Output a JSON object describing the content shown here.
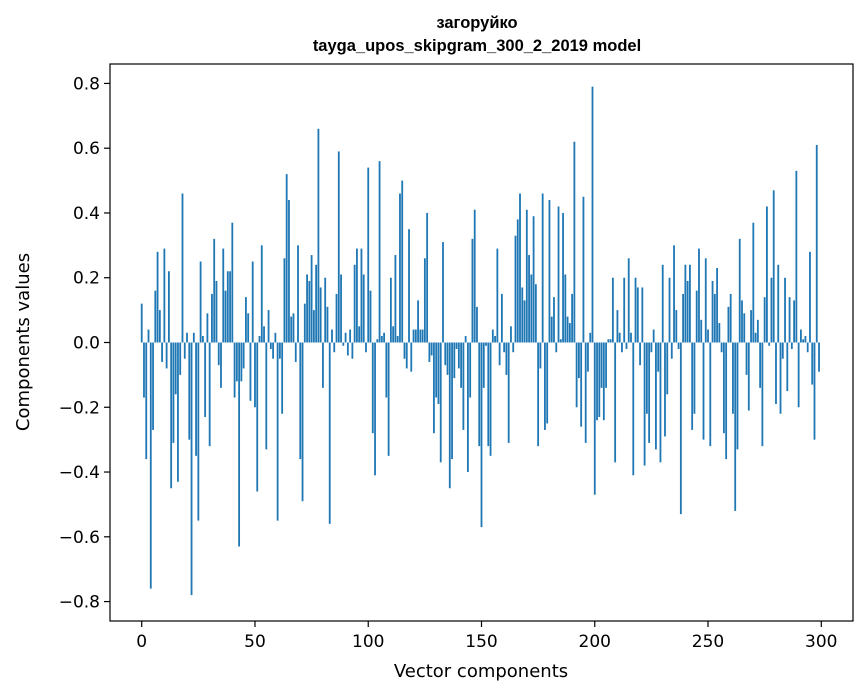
{
  "chart_data": {
    "type": "bar",
    "title": "загоруйко",
    "subtitle": "tayga_upos_skipgram_300_2_2019 model",
    "xlabel": "Vector components",
    "ylabel": "Components values",
    "xlim": [
      -14,
      314
    ],
    "ylim": [
      -0.86,
      0.86
    ],
    "xticks": [
      0,
      50,
      100,
      150,
      200,
      250,
      300
    ],
    "yticks": [
      -0.8,
      -0.6,
      -0.4,
      -0.2,
      0.0,
      0.2,
      0.4,
      0.6,
      0.8
    ],
    "ytick_labels": [
      "−0.8",
      "−0.6",
      "−0.4",
      "−0.2",
      "0.0",
      "0.2",
      "0.4",
      "0.6",
      "0.8"
    ],
    "bar_color": "#1f77b4",
    "grid": false,
    "values": [
      0.12,
      -0.17,
      -0.36,
      0.04,
      -0.76,
      -0.27,
      0.16,
      0.28,
      0.1,
      -0.06,
      0.29,
      -0.08,
      0.22,
      -0.45,
      -0.31,
      -0.16,
      -0.43,
      -0.1,
      0.46,
      -0.05,
      0.03,
      -0.3,
      -0.78,
      0.03,
      -0.35,
      -0.55,
      0.25,
      0.02,
      -0.23,
      0.09,
      -0.32,
      0.15,
      0.32,
      0.19,
      -0.07,
      -0.14,
      0.29,
      0.16,
      0.22,
      0.22,
      0.37,
      -0.17,
      -0.12,
      -0.63,
      -0.12,
      -0.08,
      0.14,
      0.09,
      -0.18,
      0.25,
      -0.2,
      -0.46,
      0.02,
      0.3,
      0.05,
      -0.33,
      0.1,
      -0.02,
      -0.05,
      0.03,
      -0.55,
      -0.05,
      -0.22,
      0.26,
      0.52,
      0.44,
      0.08,
      0.09,
      -0.06,
      0.3,
      -0.36,
      -0.49,
      0.12,
      0.21,
      0.19,
      0.27,
      0.1,
      0.24,
      0.66,
      0.17,
      -0.14,
      0.2,
      0.11,
      -0.56,
      0.04,
      -0.03,
      0.15,
      0.59,
      0.21,
      -0.01,
      0.03,
      -0.04,
      0.04,
      -0.05,
      0.24,
      0.29,
      0.05,
      0.29,
      0.21,
      -0.03,
      0.54,
      0.16,
      -0.28,
      -0.41,
      0.01,
      0.56,
      0.02,
      0.03,
      -0.17,
      -0.35,
      0.2,
      0.05,
      0.27,
      0.02,
      0.46,
      0.5,
      -0.05,
      -0.08,
      0.35,
      -0.09,
      0.04,
      0.04,
      0.13,
      0.04,
      0.04,
      0.26,
      0.4,
      -0.06,
      -0.04,
      -0.28,
      -0.17,
      -0.19,
      -0.37,
      0.31,
      -0.07,
      -0.1,
      -0.45,
      -0.36,
      -0.11,
      -0.02,
      -0.08,
      -0.14,
      -0.27,
      0.02,
      -0.4,
      -0.17,
      0.32,
      0.41,
      0.11,
      -0.32,
      -0.57,
      -0.14,
      -0.01,
      -0.32,
      -0.35,
      0.04,
      0.02,
      0.29,
      -0.07,
      0.15,
      -0.03,
      -0.1,
      -0.31,
      0.05,
      -0.03,
      0.33,
      0.38,
      0.46,
      0.17,
      0.13,
      0.41,
      0.27,
      0.21,
      0.39,
      0.18,
      -0.32,
      -0.08,
      0.46,
      -0.27,
      -0.25,
      0.44,
      0.08,
      0.14,
      -0.03,
      0.42,
      0.01,
      0.4,
      0.21,
      0.08,
      0.06,
      0.15,
      0.62,
      -0.2,
      -0.11,
      -0.26,
      0.45,
      -0.31,
      -0.09,
      0.03,
      0.79,
      -0.47,
      -0.24,
      -0.23,
      -0.14,
      -0.24,
      -0.14,
      0.01,
      0.01,
      0.2,
      -0.37,
      0.1,
      0.03,
      -0.03,
      0.2,
      -0.02,
      0.26,
      0.03,
      -0.41,
      0.2,
      0.17,
      -0.07,
      0.17,
      -0.38,
      -0.22,
      -0.31,
      -0.03,
      0.04,
      -0.33,
      -0.09,
      -0.37,
      0.24,
      -0.29,
      -0.16,
      0.2,
      -0.05,
      0.3,
      0.1,
      -0.02,
      -0.53,
      0.15,
      0.24,
      0.19,
      0.24,
      -0.27,
      -0.22,
      0.16,
      0.29,
      0.07,
      -0.3,
      0.26,
      0.04,
      -0.32,
      0.19,
      0.15,
      0.23,
      0.06,
      -0.03,
      -0.28,
      -0.36,
      0.11,
      0.15,
      -0.22,
      -0.52,
      -0.33,
      0.32,
      0.13,
      0.09,
      -0.1,
      -0.21,
      0.1,
      0.37,
      0.03,
      0.07,
      -0.14,
      -0.32,
      0.14,
      0.42,
      -0.01,
      0.2,
      0.47,
      -0.19,
      0.24,
      -0.22,
      -0.05,
      0.2,
      -0.15,
      0.14,
      -0.02,
      0.13,
      0.53,
      -0.2,
      0.04,
      0.01,
      0.02,
      -0.03,
      0.28,
      -0.13,
      -0.3,
      0.61,
      -0.09
    ]
  }
}
